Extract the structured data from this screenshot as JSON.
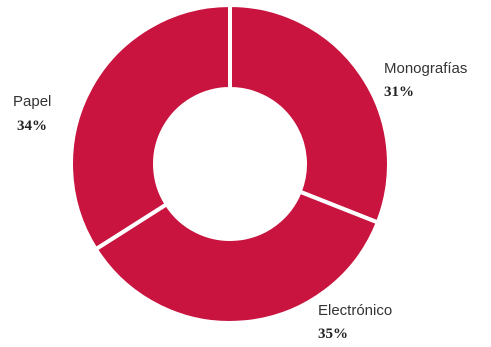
{
  "chart_data": {
    "type": "pie",
    "title": "",
    "donut": true,
    "slices": [
      {
        "label": "Monografías",
        "value": 31,
        "value_label": "31%"
      },
      {
        "label": "Electrónico",
        "value": 35,
        "value_label": "35%"
      },
      {
        "label": "Papel",
        "value": 34,
        "value_label": "34%"
      }
    ],
    "colors": {
      "slice": "#C8143F",
      "separator": "#ffffff",
      "text": "#333333"
    }
  }
}
